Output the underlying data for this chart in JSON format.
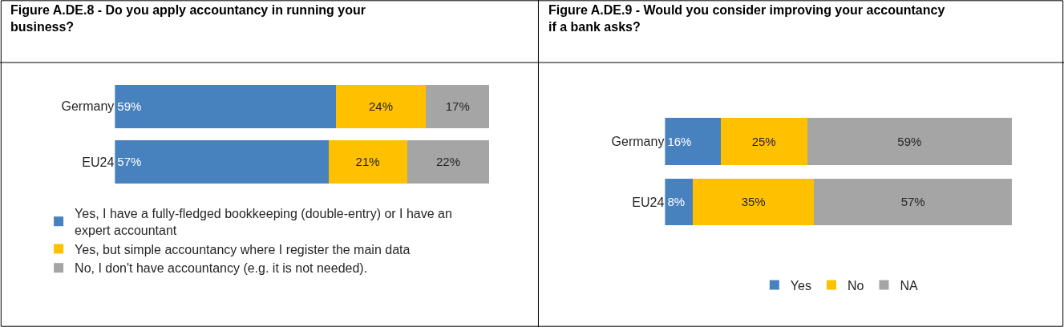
{
  "chart_data": [
    {
      "type": "bar",
      "orientation": "horizontal",
      "stacked": true,
      "title": "Figure A.DE.8 - Do you apply accountancy in running your business?",
      "categories": [
        "Germany",
        "EU24"
      ],
      "xlim": [
        0,
        100
      ],
      "tick_labels": "y",
      "legend": "bottom",
      "series": [
        {
          "name": "Yes, I have a fully-fledged bookkeeping (double-entry) or I have an expert accountant",
          "color": "#4781be",
          "values": [
            59,
            57
          ],
          "value_labels": [
            "59%",
            "57%"
          ]
        },
        {
          "name": "Yes, but simple accountancy where I register the main data",
          "color": "#ffc000",
          "values": [
            24,
            21
          ],
          "value_labels": [
            "24%",
            "21%"
          ]
        },
        {
          "name": "No, I don't have accountancy (e.g. it is not needed).",
          "color": "#a5a5a5",
          "values": [
            17,
            22
          ],
          "value_labels": [
            "17%",
            "22%"
          ]
        }
      ]
    },
    {
      "type": "bar",
      "orientation": "horizontal",
      "stacked": true,
      "title": "Figure A.DE.9 - Would you consider improving your accountancy if a bank asks?",
      "categories": [
        "Germany",
        "EU24"
      ],
      "xlim": [
        0,
        100
      ],
      "tick_labels": "y",
      "legend": "bottom",
      "series": [
        {
          "name": "Yes",
          "color": "#4781be",
          "values": [
            16,
            8
          ],
          "value_labels": [
            "16%",
            "8%"
          ]
        },
        {
          "name": "No",
          "color": "#ffc000",
          "values": [
            25,
            35
          ],
          "value_labels": [
            "25%",
            "35%"
          ]
        },
        {
          "name": "NA",
          "color": "#a5a5a5",
          "values": [
            59,
            57
          ],
          "value_labels": [
            "59%",
            "57%"
          ]
        }
      ]
    }
  ]
}
